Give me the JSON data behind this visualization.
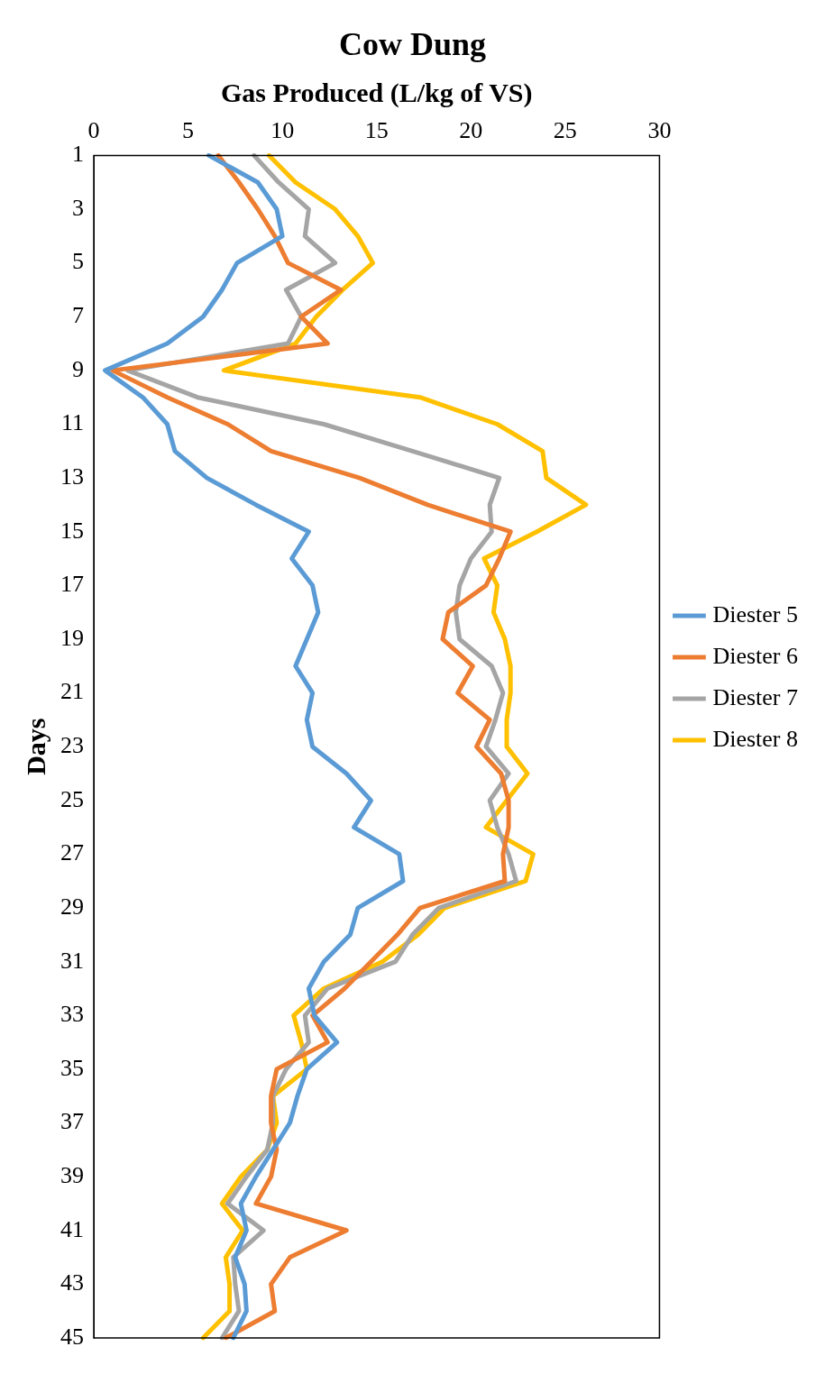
{
  "chart_data": {
    "type": "line",
    "title": "Cow Dung",
    "ylabel": "Days",
    "xlabel": "Gas Produced (L/kg of VS)",
    "orientation": "horizontal",
    "categories": [
      "1",
      null,
      "3",
      null,
      "5",
      null,
      "7",
      null,
      "9",
      null,
      "11",
      null,
      "13",
      null,
      "15",
      null,
      "17",
      null,
      "19",
      null,
      "21",
      null,
      "23",
      null,
      "25",
      null,
      "27",
      null,
      "29",
      null,
      "31",
      null,
      "33",
      null,
      "35",
      null,
      "37",
      null,
      "39",
      null,
      "41",
      null,
      "43",
      null,
      "45"
    ],
    "series": [
      {
        "name": "Diester 5",
        "color": "#5b9bd5",
        "values": [
          6.1,
          8.7,
          9.7,
          10.0,
          7.6,
          6.8,
          5.8,
          3.9,
          0.6,
          2.6,
          3.9,
          4.3,
          6.0,
          8.6,
          11.4,
          10.5,
          11.6,
          11.9,
          11.3,
          10.7,
          11.6,
          11.3,
          11.6,
          13.4,
          14.7,
          13.8,
          16.2,
          16.4,
          14.0,
          13.6,
          12.2,
          11.4,
          11.7,
          12.9,
          11.3,
          10.8,
          10.4,
          9.5,
          8.6,
          7.8,
          8.1,
          7.5,
          8.0,
          8.1,
          7.4
        ]
      },
      {
        "name": "Diester 6",
        "color": "#ed7d31",
        "values": [
          6.6,
          7.7,
          8.7,
          9.6,
          10.3,
          13.1,
          11.0,
          12.4,
          1.0,
          3.9,
          7.1,
          9.4,
          14.1,
          17.7,
          22.1,
          21.5,
          20.8,
          18.8,
          18.5,
          20.1,
          19.3,
          21.0,
          20.3,
          21.6,
          22.0,
          22.0,
          21.7,
          21.8,
          17.3,
          16.1,
          14.7,
          13.3,
          11.6,
          12.4,
          9.7,
          9.4,
          9.4,
          9.7,
          9.4,
          8.6,
          13.4,
          10.4,
          9.4,
          9.6,
          7.0
        ]
      },
      {
        "name": "Diester 7",
        "color": "#a5a5a5",
        "values": [
          8.5,
          9.8,
          11.4,
          11.2,
          12.8,
          10.2,
          11.0,
          10.3,
          1.8,
          5.5,
          12.2,
          16.9,
          21.5,
          21.0,
          21.1,
          20.0,
          19.4,
          19.2,
          19.4,
          21.1,
          21.7,
          21.3,
          20.8,
          22.0,
          21.0,
          21.4,
          22.0,
          22.4,
          18.3,
          16.9,
          16.0,
          12.4,
          11.2,
          11.4,
          10.2,
          9.5,
          9.5,
          9.2,
          8.1,
          7.1,
          9.0,
          7.4,
          7.5,
          7.7,
          6.8
        ]
      },
      {
        "name": "Diester 8",
        "color": "#ffc000",
        "values": [
          9.3,
          10.7,
          12.8,
          14.0,
          14.8,
          13.2,
          11.8,
          10.7,
          6.9,
          17.3,
          21.4,
          23.8,
          24.0,
          26.1,
          23.5,
          20.7,
          21.4,
          21.2,
          21.8,
          22.1,
          22.1,
          21.9,
          21.9,
          23.0,
          21.9,
          20.8,
          23.3,
          22.9,
          18.6,
          17.2,
          15.3,
          12.2,
          10.6,
          11.0,
          11.3,
          9.5,
          9.7,
          9.2,
          7.8,
          6.8,
          7.9,
          7.0,
          7.2,
          7.2,
          5.8
        ]
      }
    ],
    "xlim": [
      0,
      30
    ],
    "xticks": [
      0,
      5,
      10,
      15,
      20,
      25,
      30
    ],
    "grid": false,
    "legend": "right",
    "marker": "none",
    "line_style": "solid"
  }
}
